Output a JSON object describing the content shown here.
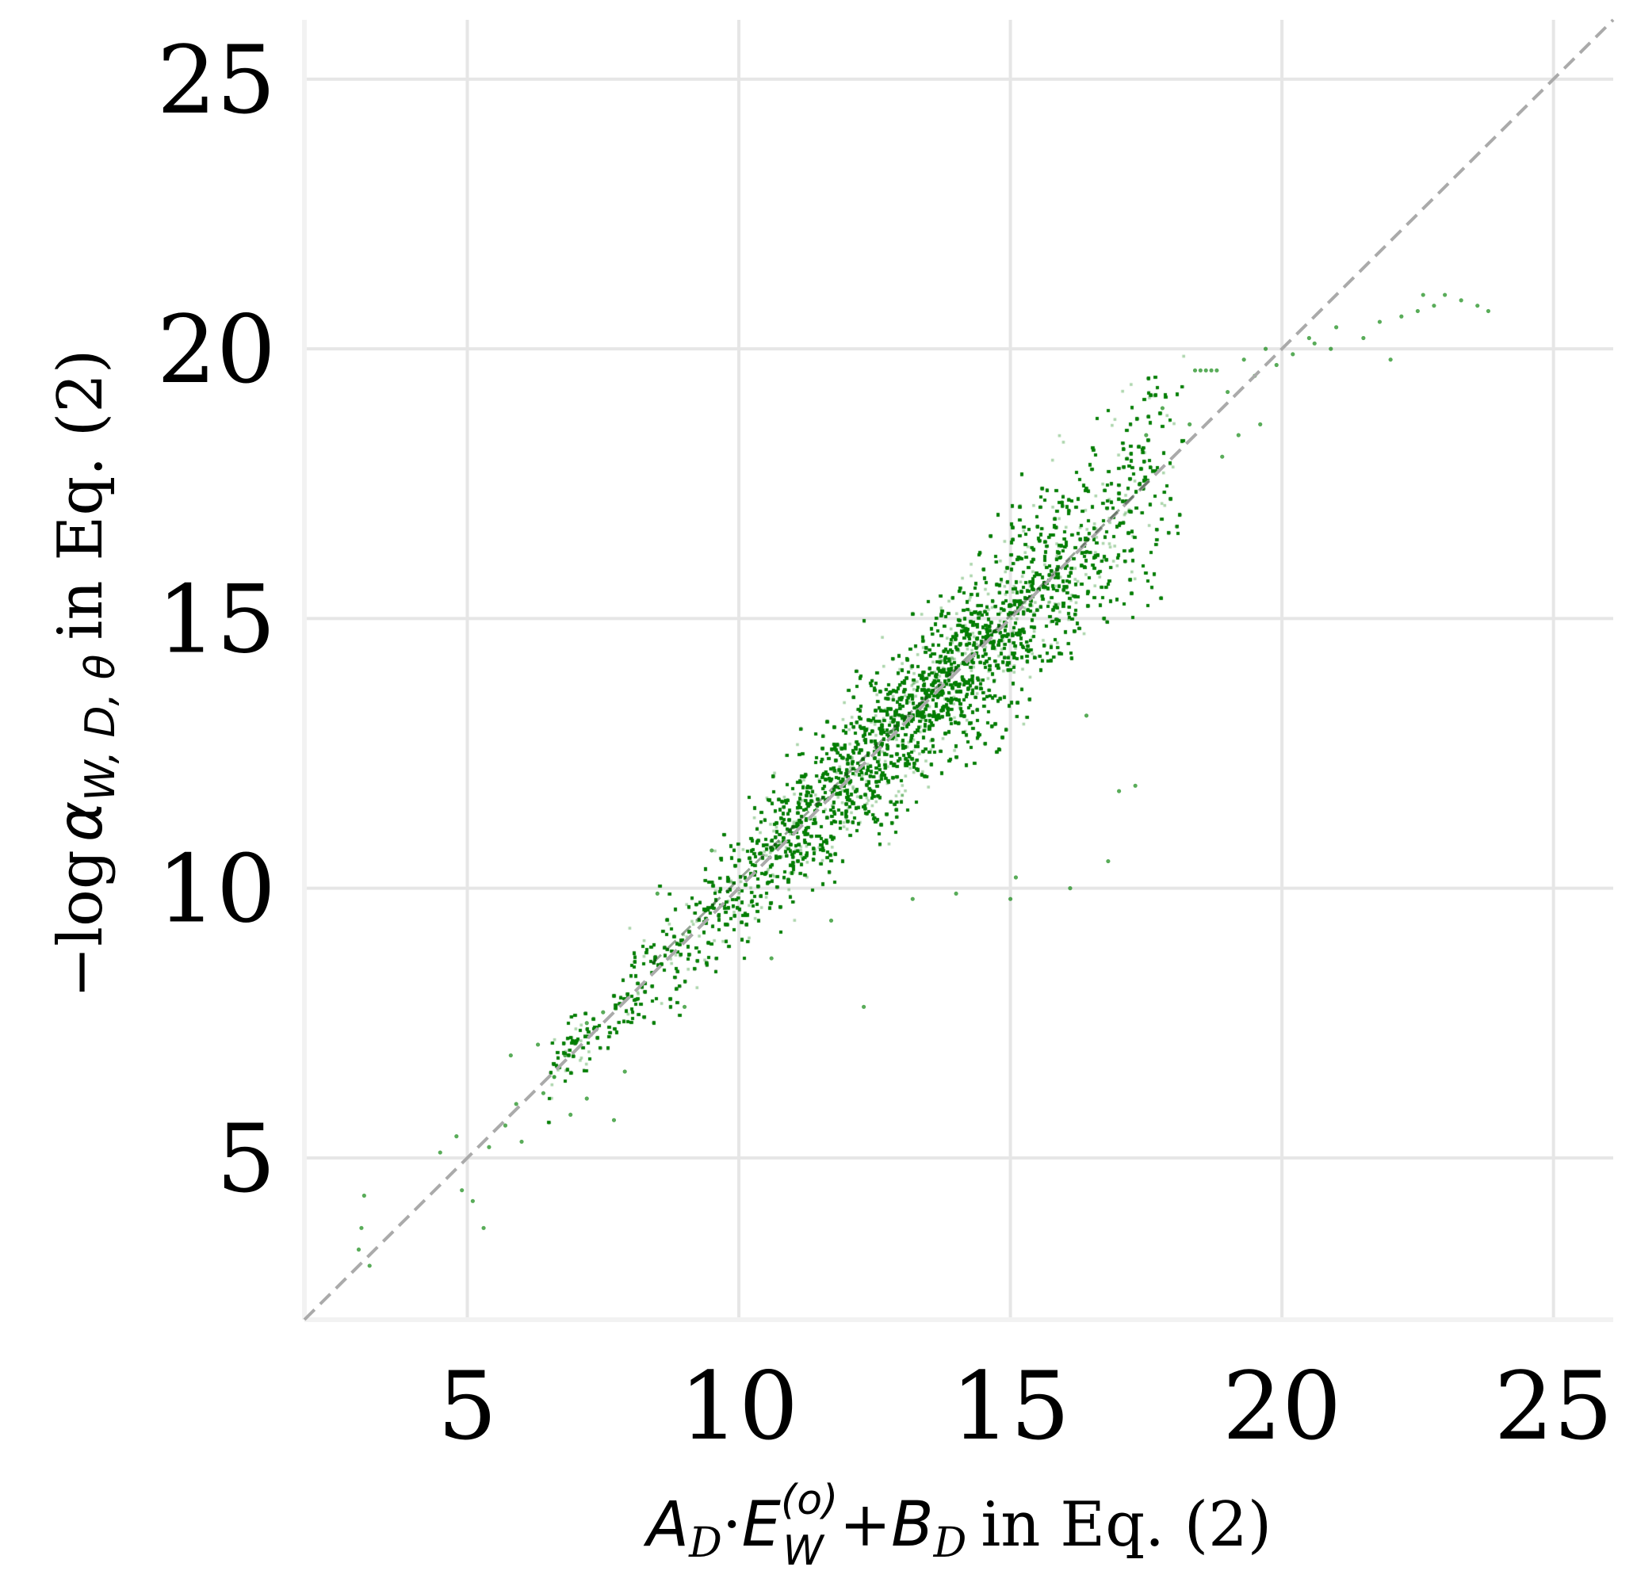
{
  "chart_data": {
    "type": "scatter",
    "title": "",
    "xlabel": {
      "parts": [
        "A",
        "D",
        "·",
        "E",
        "(o)",
        "W",
        "+",
        "B",
        "D",
        "in Eq. (2)"
      ]
    },
    "ylabel": {
      "parts": [
        "−log",
        "α",
        "W, D, θ",
        "in Eq. (2)"
      ]
    },
    "xlim": [
      2.0,
      26.1
    ],
    "ylim": [
      2.0,
      26.1
    ],
    "xticks": [
      5,
      10,
      15,
      20,
      25
    ],
    "yticks": [
      5,
      10,
      15,
      20,
      25
    ],
    "xtick_labels": [
      "5",
      "10",
      "15",
      "20",
      "25"
    ],
    "ytick_labels": [
      "5",
      "10",
      "15",
      "20",
      "25"
    ],
    "grid": true,
    "reference_line": {
      "style": "dashed",
      "color": "#aaaaaa",
      "from": [
        2.0,
        2.0
      ],
      "to": [
        26.1,
        26.1
      ]
    },
    "marker_color": "#008000",
    "marker_alpha": 0.55,
    "series": [
      {
        "cloud": {
          "x_min": 6.5,
          "x_max": 18.2,
          "slope": 1.0,
          "intercept": 0.0,
          "spread_start": 0.45,
          "spread_end": 1.3,
          "density_peak_x": 13.5
        },
        "points": [
          [
            3.0,
            3.3
          ],
          [
            3.1,
            4.3
          ],
          [
            3.2,
            3.0
          ],
          [
            3.05,
            3.7
          ],
          [
            4.5,
            5.1
          ],
          [
            4.8,
            5.4
          ],
          [
            4.9,
            4.4
          ],
          [
            5.1,
            4.2
          ],
          [
            5.3,
            3.7
          ],
          [
            5.4,
            5.2
          ],
          [
            5.7,
            5.6
          ],
          [
            5.9,
            6.0
          ],
          [
            6.0,
            5.3
          ],
          [
            6.4,
            6.2
          ],
          [
            6.6,
            6.5
          ],
          [
            6.8,
            6.9
          ],
          [
            5.8,
            6.9
          ],
          [
            6.3,
            7.1
          ],
          [
            6.9,
            5.8
          ],
          [
            7.2,
            7.5
          ],
          [
            7.5,
            7.7
          ],
          [
            7.2,
            6.1
          ],
          [
            7.7,
            5.7
          ],
          [
            7.9,
            6.6
          ],
          [
            9.0,
            7.8
          ],
          [
            8.5,
            9.9
          ],
          [
            9.5,
            10.7
          ],
          [
            10.6,
            8.7
          ],
          [
            11.7,
            9.4
          ],
          [
            12.3,
            7.8
          ],
          [
            12.8,
            12.9
          ],
          [
            13.2,
            9.8
          ],
          [
            14.0,
            9.9
          ],
          [
            15.0,
            9.8
          ],
          [
            15.1,
            10.2
          ],
          [
            16.1,
            10.0
          ],
          [
            16.8,
            10.5
          ],
          [
            17.0,
            11.8
          ],
          [
            17.3,
            11.9
          ],
          [
            16.4,
            13.2
          ],
          [
            18.4,
            19.6
          ],
          [
            18.5,
            19.6
          ],
          [
            18.6,
            19.6
          ],
          [
            18.7,
            19.6
          ],
          [
            18.8,
            19.6
          ],
          [
            19.0,
            19.2
          ],
          [
            19.3,
            19.8
          ],
          [
            19.5,
            19.5
          ],
          [
            19.7,
            20.0
          ],
          [
            19.9,
            19.7
          ],
          [
            20.2,
            19.9
          ],
          [
            20.5,
            20.2
          ],
          [
            20.6,
            20.1
          ],
          [
            21.0,
            20.4
          ],
          [
            20.9,
            20.0
          ],
          [
            21.5,
            20.2
          ],
          [
            21.8,
            20.5
          ],
          [
            22.0,
            19.8
          ],
          [
            22.2,
            20.6
          ],
          [
            22.5,
            20.7
          ],
          [
            22.8,
            20.8
          ],
          [
            23.0,
            21.0
          ],
          [
            22.6,
            21.0
          ],
          [
            23.3,
            20.9
          ],
          [
            23.6,
            20.8
          ],
          [
            23.8,
            20.7
          ],
          [
            19.6,
            18.6
          ],
          [
            19.2,
            18.4
          ],
          [
            18.9,
            18.0
          ],
          [
            18.3,
            18.6
          ],
          [
            17.8,
            18.9
          ],
          [
            17.5,
            18.4
          ]
        ]
      }
    ]
  }
}
